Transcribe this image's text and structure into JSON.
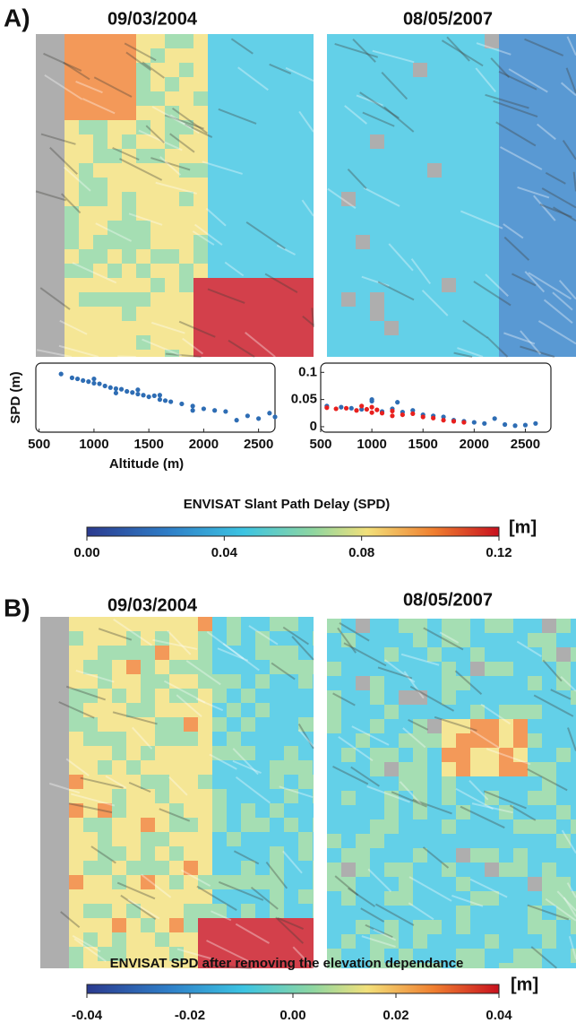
{
  "panels": [
    {
      "label": "A)",
      "dates": [
        "09/03/2004",
        "08/05/2007"
      ]
    },
    {
      "label": "B)",
      "dates": [
        "09/03/2004",
        "08/05/2007"
      ]
    }
  ],
  "chart_data": [
    {
      "type": "scatter",
      "xlabel": "Altitude (m)",
      "ylabel": "SPD (m)",
      "xlim": [
        470,
        2650
      ],
      "ylim": [
        -0.01,
        0.117
      ],
      "xticks": [
        500,
        1000,
        1500,
        2000,
        2500
      ],
      "series": [
        {
          "color": "#2e6db4",
          "x": [
            700,
            800,
            850,
            900,
            950,
            1000,
            1050,
            1100,
            1150,
            1200,
            1250,
            1300,
            1350,
            1400,
            1450,
            1500,
            1550,
            1600,
            1650,
            1700,
            1800,
            1900,
            2000,
            2100,
            2200,
            2300,
            2400,
            2500,
            2600,
            2650,
            1000,
            1200,
            1400,
            1600,
            1900
          ],
          "values": [
            0.097,
            0.09,
            0.088,
            0.085,
            0.083,
            0.08,
            0.079,
            0.075,
            0.072,
            0.07,
            0.069,
            0.065,
            0.063,
            0.06,
            0.058,
            0.055,
            0.057,
            0.05,
            0.048,
            0.046,
            0.042,
            0.038,
            0.033,
            0.03,
            0.028,
            0.012,
            0.02,
            0.015,
            0.025,
            0.018,
            0.088,
            0.062,
            0.068,
            0.058,
            0.03
          ]
        }
      ]
    },
    {
      "type": "scatter",
      "xlim": [
        500,
        2750
      ],
      "ylim": [
        -0.01,
        0.117
      ],
      "xticks": [
        500,
        1000,
        1500,
        2000,
        2500
      ],
      "yticks": [
        0,
        0.05,
        0.1
      ],
      "series": [
        {
          "color": "#2e6db4",
          "x": [
            560,
            700,
            800,
            900,
            1000,
            1100,
            1200,
            1300,
            1400,
            1500,
            1600,
            1700,
            1800,
            1900,
            2000,
            2100,
            2200,
            2300,
            2400,
            2500,
            2600,
            1000,
            1250
          ],
          "values": [
            0.038,
            0.036,
            0.034,
            0.032,
            0.047,
            0.028,
            0.033,
            0.027,
            0.03,
            0.022,
            0.02,
            0.018,
            0.012,
            0.01,
            0.008,
            0.006,
            0.015,
            0.004,
            0.002,
            0.003,
            0.006,
            0.05,
            0.045
          ]
        },
        {
          "color": "#e8201e",
          "x": [
            560,
            650,
            750,
            850,
            950,
            1000,
            1050,
            1100,
            1200,
            1300,
            1400,
            1500,
            1600,
            1700,
            1800,
            1900,
            900,
            1200,
            1000
          ],
          "values": [
            0.035,
            0.033,
            0.034,
            0.03,
            0.032,
            0.026,
            0.031,
            0.025,
            0.029,
            0.022,
            0.024,
            0.018,
            0.016,
            0.012,
            0.01,
            0.008,
            0.038,
            0.02,
            0.036
          ]
        }
      ]
    }
  ],
  "colorbars": [
    {
      "title": "ENVISAT Slant Path Delay (SPD)",
      "unit": "[m]",
      "lim": [
        0,
        0.12
      ],
      "ticks": [
        {
          "value": 0,
          "label": "0.00"
        },
        0.04,
        0.08,
        0.12
      ]
    },
    {
      "title": "ENVISAT SPD after removing the elevation dependance",
      "unit": "[m]",
      "lim": [
        -0.04,
        0.04
      ],
      "ticks": [
        -0.04,
        -0.02,
        {
          "value": 0,
          "label": "0.00"
        },
        0.02,
        0.04
      ]
    }
  ]
}
